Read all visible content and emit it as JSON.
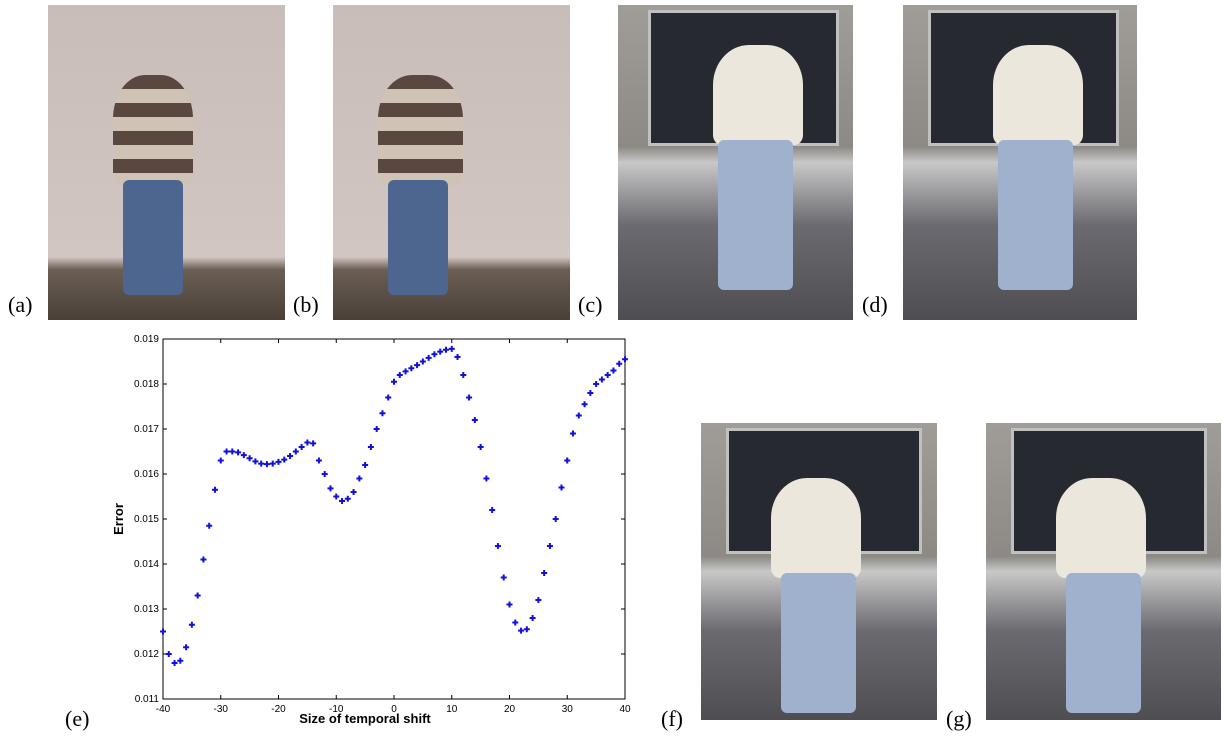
{
  "panel_labels": [
    "(a)",
    "(b)",
    "(c)",
    "(d)",
    "(e)",
    "(f)",
    "(g)"
  ],
  "chart_data": {
    "type": "scatter",
    "xlabel": "Size of temporal shift",
    "ylabel": "Error",
    "color": "#1010e0",
    "marker": "+",
    "x": [
      -40,
      -39,
      -38,
      -37,
      -36,
      -35,
      -34,
      -33,
      -32,
      -31,
      -30,
      -29,
      -28,
      -27,
      -26,
      -25,
      -24,
      -23,
      -22,
      -21,
      -20,
      -19,
      -18,
      -17,
      -16,
      -15,
      -14,
      -13,
      -12,
      -11,
      -10,
      -9,
      -8,
      -7,
      -6,
      -5,
      -4,
      -3,
      -2,
      -1,
      0,
      1,
      2,
      3,
      4,
      5,
      6,
      7,
      8,
      9,
      10,
      11,
      12,
      13,
      14,
      15,
      16,
      17,
      18,
      19,
      20,
      21,
      22,
      23,
      24,
      25,
      26,
      27,
      28,
      29,
      30,
      31,
      32,
      33,
      34,
      35,
      36,
      37,
      38,
      39,
      40
    ],
    "values": [
      0.0125,
      0.012,
      0.0118,
      0.01185,
      0.01215,
      0.01265,
      0.0133,
      0.0141,
      0.01485,
      0.01565,
      0.0163,
      0.0165,
      0.0165,
      0.01648,
      0.01642,
      0.01635,
      0.01628,
      0.01623,
      0.01622,
      0.01623,
      0.01627,
      0.01632,
      0.0164,
      0.0165,
      0.0166,
      0.0167,
      0.01668,
      0.0163,
      0.016,
      0.01568,
      0.0155,
      0.0154,
      0.01545,
      0.0156,
      0.0159,
      0.0162,
      0.0166,
      0.017,
      0.01735,
      0.0177,
      0.01805,
      0.0182,
      0.01828,
      0.01835,
      0.01842,
      0.0185,
      0.01858,
      0.01866,
      0.01872,
      0.01876,
      0.01878,
      0.0186,
      0.0182,
      0.0177,
      0.0172,
      0.0166,
      0.0159,
      0.0152,
      0.0144,
      0.0137,
      0.0131,
      0.0127,
      0.01252,
      0.01255,
      0.0128,
      0.0132,
      0.0138,
      0.0144,
      0.015,
      0.0157,
      0.0163,
      0.0169,
      0.0173,
      0.01755,
      0.0178,
      0.018,
      0.0181,
      0.0182,
      0.0183,
      0.01845,
      0.01855
    ],
    "xlim": [
      -40,
      40
    ],
    "ylim": [
      0.011,
      0.019
    ],
    "xticks": [
      -40,
      -30,
      -20,
      -10,
      0,
      10,
      20,
      30,
      40
    ],
    "yticks": [
      0.011,
      0.012,
      0.013,
      0.014,
      0.015,
      0.016,
      0.017,
      0.018,
      0.019
    ]
  }
}
